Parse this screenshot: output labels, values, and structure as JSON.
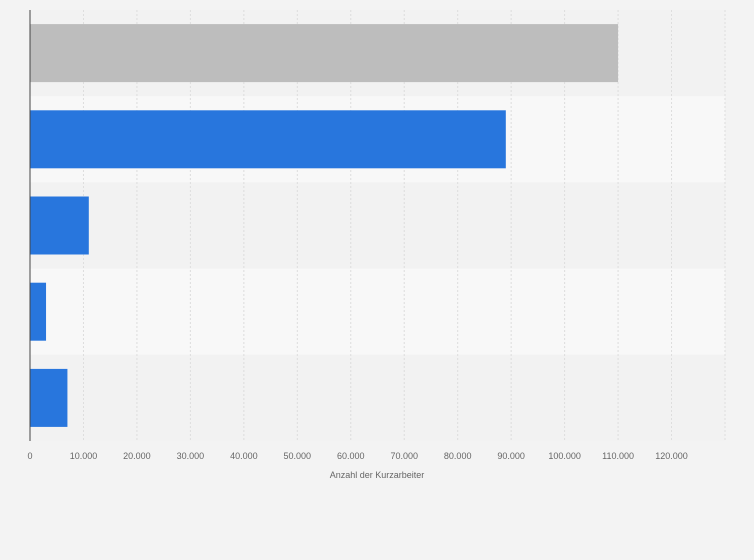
{
  "chart_data": {
    "type": "bar",
    "orientation": "horizontal",
    "categories": [
      "",
      "",
      "",
      "",
      ""
    ],
    "values": [
      110000,
      89000,
      11000,
      3000,
      7000
    ],
    "bar_colors": [
      "#bdbdbd",
      "#2876dd",
      "#2876dd",
      "#2876dd",
      "#2876dd"
    ],
    "xlabel": "Anzahl der Kurzarbeiter",
    "ylabel": "",
    "xlim": [
      0,
      130000
    ],
    "xticks": [
      0,
      10000,
      20000,
      30000,
      40000,
      50000,
      60000,
      70000,
      80000,
      90000,
      100000,
      110000,
      120000
    ],
    "xtick_labels": [
      "0",
      "10.000",
      "20.000",
      "30.000",
      "40.000",
      "50.000",
      "60.000",
      "70.000",
      "80.000",
      "90.000",
      "100.000",
      "110.000",
      "120.000"
    ],
    "grid": true,
    "legend": "none"
  },
  "colors": {
    "background": "#f3f3f3",
    "band_light": "#f8f8f8",
    "band_dark": "#f2f2f2",
    "grid": "#dddddd",
    "axis": "#444444"
  }
}
